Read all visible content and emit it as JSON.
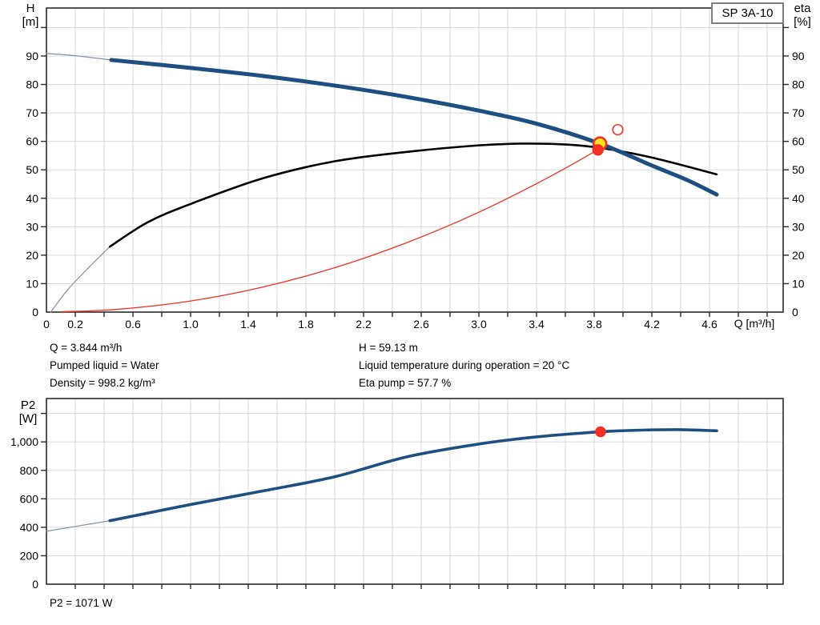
{
  "pump_model": "SP 3A-10",
  "info_panel": {
    "q": "Q = 3.844 m³/h",
    "pumped_liquid": "Pumped liquid = Water",
    "density": "Density = 998.2 kg/m³",
    "h": "H = 59.13 m",
    "liquid_temperature": "Liquid temperature during operation = 20 °C",
    "eta_pump": "Eta pump = 57.7 %"
  },
  "p2_label": "P2 = 1071 W",
  "colors": {
    "curve_blue": "#1d4f82",
    "curve_blue_thin": "#7d90a9",
    "curve_black": "#000000",
    "curve_black_thin": "#8f8f8f",
    "curve_red": "#f03022",
    "marker_yellow": "#ffe11c",
    "grid": "#d9d9d9",
    "frame": "#2b2b2b"
  },
  "chart_data": [
    {
      "type": "line",
      "title": "Pump curve: head and efficiency vs flow",
      "xlabel": "Q [m³/h]",
      "ylabel_left": "H [m]",
      "ylabel_right": "eta [%]",
      "axis_title_left": [
        "H",
        "[m]"
      ],
      "axis_title_right": [
        "eta",
        "[%]"
      ],
      "xlim": [
        0,
        5.11
      ],
      "ylim": [
        0,
        107
      ],
      "x_tick_step": 0.2,
      "y_tick_step": 10,
      "x_tick_labels": [
        "0",
        "0.2",
        "0.6",
        "1.0",
        "1.4",
        "1.8",
        "2.2",
        "2.6",
        "3.0",
        "3.4",
        "3.8",
        "4.2",
        "4.6"
      ],
      "y_tick_labels": [
        "0",
        "10",
        "20",
        "30",
        "40",
        "50",
        "60",
        "70",
        "80",
        "90"
      ],
      "y_right_tick_labels": [
        "0",
        "10",
        "20",
        "30",
        "40",
        "50",
        "60",
        "70",
        "80",
        "90"
      ],
      "grid": "on",
      "series": [
        {
          "name": "system-curve",
          "color": "#f03022",
          "width": 1.3,
          "x": [
            0.1,
            0.5,
            1.0,
            1.5,
            2.0,
            2.5,
            3.0,
            3.5,
            3.844
          ],
          "y": [
            0.1,
            1.0,
            3.9,
            8.8,
            15.6,
            24.4,
            35.1,
            47.8,
            57.6
          ]
        },
        {
          "name": "eta-curve-low-flow",
          "color": "#8f8f8f",
          "width": 1.2,
          "x": [
            0.03,
            0.15,
            0.3,
            0.44
          ],
          "y": [
            0,
            8,
            16,
            23
          ]
        },
        {
          "name": "eta-curve",
          "color": "#000000",
          "width": 2.6,
          "x": [
            0.44,
            0.7,
            1.0,
            1.5,
            2.0,
            2.5,
            3.0,
            3.3,
            3.6,
            3.844,
            4.2,
            4.65
          ],
          "y": [
            23,
            31.5,
            38,
            47,
            53,
            56.3,
            58.6,
            59.2,
            58.9,
            57.7,
            54.3,
            48.4
          ]
        },
        {
          "name": "head-curve-low-flow",
          "color": "#7d90a9",
          "width": 1.3,
          "x": [
            0,
            0.2,
            0.45
          ],
          "y": [
            90.9,
            90.1,
            88.6
          ]
        },
        {
          "name": "head-curve",
          "color": "#1d4f82",
          "width": 5,
          "x": [
            0.45,
            1.0,
            1.5,
            2.0,
            2.5,
            3.0,
            3.4,
            3.844,
            4.2,
            4.45,
            4.65
          ],
          "y": [
            88.6,
            85.8,
            83.0,
            79.6,
            75.6,
            70.8,
            66.2,
            59.13,
            51.5,
            46.3,
            41.3
          ]
        }
      ],
      "markers": [
        {
          "name": "duty-point-head",
          "x": 3.84,
          "y": 59.13,
          "r": 8,
          "fill": "#ffe11c",
          "stroke": "#f03022",
          "stroke_width": 2.6
        },
        {
          "name": "duty-point-eta",
          "x": 3.826,
          "y": 57.0,
          "r": 7.2,
          "fill": "#f03022",
          "stroke": "none",
          "stroke_width": 0
        },
        {
          "name": "rated-duty-point",
          "x": 3.964,
          "y": 64.1,
          "r": 6.3,
          "fill": "none",
          "stroke": "#f03022",
          "stroke_width": 1.6
        }
      ]
    },
    {
      "type": "line",
      "title": "Power P2 vs flow",
      "xlabel": "",
      "ylabel": "P2 [W]",
      "axis_title": [
        "P2",
        "[W]"
      ],
      "xlim": [
        0,
        5.11
      ],
      "ylim": [
        0,
        1305
      ],
      "x_tick_step": 0.2,
      "y_tick_step": 200,
      "x_tick_labels": [],
      "y_tick_labels": [
        "0",
        "200",
        "400",
        "600",
        "800",
        "1,000"
      ],
      "grid": "on",
      "series": [
        {
          "name": "p2-curve-low-flow",
          "color": "#7d90a9",
          "width": 1.2,
          "x": [
            0,
            0.2,
            0.44
          ],
          "y": [
            372,
            406,
            446
          ]
        },
        {
          "name": "p2-curve",
          "color": "#1d4f82",
          "width": 3.6,
          "x": [
            0.44,
            1.0,
            1.5,
            2.0,
            2.5,
            3.0,
            3.4,
            3.844,
            4.1,
            4.4,
            4.65
          ],
          "y": [
            446,
            560,
            655,
            755,
            895,
            985,
            1035,
            1071,
            1082,
            1086,
            1078
          ]
        }
      ],
      "markers": [
        {
          "name": "duty-point-p2",
          "x": 3.844,
          "y": 1071,
          "r": 6.8,
          "fill": "#f03022",
          "stroke": "none",
          "stroke_width": 0
        }
      ]
    }
  ]
}
